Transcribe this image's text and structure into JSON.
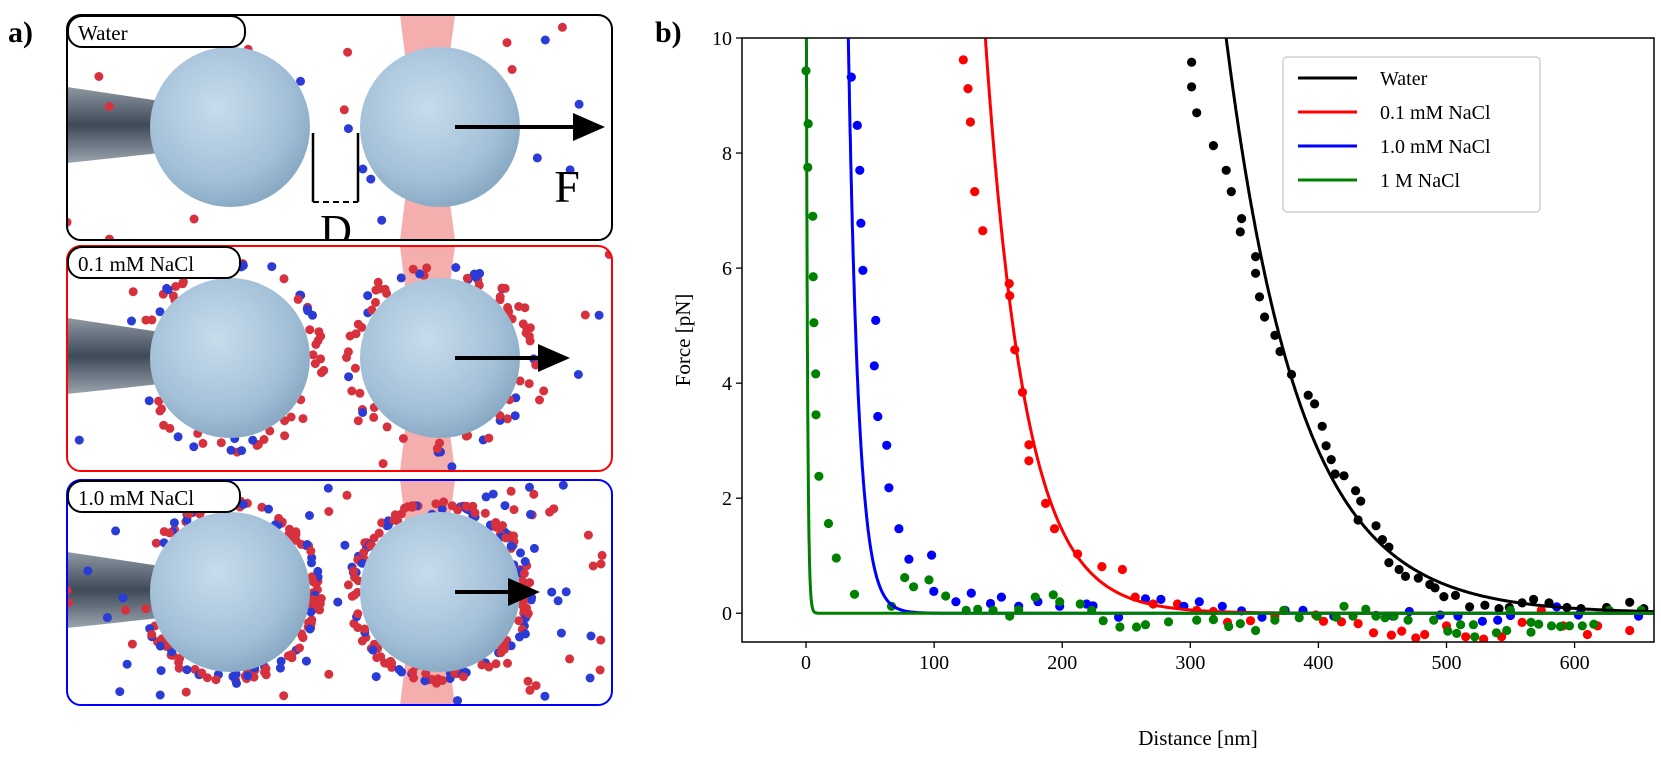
{
  "panel_a": {
    "label": "a)",
    "scenes": [
      {
        "title": "Water",
        "frame_color": "#000000"
      },
      {
        "title": "0.1 mM NaCl",
        "frame_color": "#ff0000"
      },
      {
        "title": "1.0 mM NaCl",
        "frame_color": "#0000ff"
      }
    ],
    "gap_label": "D",
    "force_label": "F",
    "colors": {
      "sphere": "#a9c6dc",
      "cation": "#d6313d",
      "anion": "#2b3bd6",
      "laser": "#f2a0a0",
      "pipette": "#5a6470"
    }
  },
  "chart_data": {
    "panel_label": "b)",
    "type": "scatter",
    "title": "",
    "xlabel": "Distance [nm]",
    "ylabel": "Force [pN]",
    "xlim": [
      -50,
      662
    ],
    "ylim": [
      -0.5,
      10
    ],
    "xticks": [
      0,
      100,
      200,
      300,
      400,
      500,
      600
    ],
    "yticks": [
      0,
      2,
      4,
      6,
      8,
      10
    ],
    "grid": false,
    "legend_position": "top-right",
    "series": [
      {
        "name": "Water",
        "color": "#000000",
        "fit": {
          "amplitude": 10,
          "x0": 328,
          "decay_length": 57
        },
        "points": [
          [
            301,
            9.58
          ],
          [
            301,
            9.15
          ],
          [
            305,
            8.7
          ],
          [
            318,
            8.13
          ],
          [
            328,
            7.7
          ],
          [
            332,
            7.33
          ],
          [
            340,
            6.86
          ],
          [
            339,
            6.63
          ],
          [
            351,
            6.2
          ],
          [
            351,
            5.91
          ],
          [
            354,
            5.5
          ],
          [
            358,
            5.15
          ],
          [
            366,
            4.83
          ],
          [
            370,
            4.55
          ],
          [
            379,
            4.15
          ],
          [
            392,
            3.79
          ],
          [
            397,
            3.64
          ],
          [
            403,
            3.25
          ],
          [
            406,
            2.91
          ],
          [
            410,
            2.67
          ],
          [
            413,
            2.42
          ],
          [
            420,
            2.39
          ],
          [
            429,
            2.13
          ],
          [
            433,
            1.95
          ],
          [
            431,
            1.62
          ],
          [
            445,
            1.52
          ],
          [
            450,
            1.28
          ],
          [
            455,
            1.15
          ],
          [
            455,
            0.88
          ],
          [
            463,
            0.76
          ],
          [
            468,
            0.64
          ],
          [
            478,
            0.61
          ],
          [
            487,
            0.5
          ],
          [
            491,
            0.44
          ],
          [
            498,
            0.29
          ],
          [
            507,
            0.31
          ],
          [
            518,
            0.11
          ],
          [
            530,
            0.14
          ],
          [
            541,
            0.08
          ],
          [
            549,
            0.1
          ],
          [
            559,
            0.18
          ],
          [
            568,
            0.24
          ],
          [
            580,
            0.18
          ],
          [
            594,
            0.1
          ],
          [
            605,
            0.08
          ],
          [
            625,
            0.1
          ],
          [
            643,
            0.19
          ],
          [
            654,
            0.08
          ]
        ]
      },
      {
        "name": "0.1 mM NaCl",
        "color": "#ff0000",
        "fit": {
          "amplitude": 10,
          "x0": 140,
          "decay_length": 31
        },
        "points": [
          [
            122.8,
            9.62
          ],
          [
            126.4,
            9.12
          ],
          [
            128.3,
            8.54
          ],
          [
            131.7,
            7.33
          ],
          [
            138,
            6.65
          ],
          [
            158.6,
            5.73
          ],
          [
            159,
            5.52
          ],
          [
            163,
            4.58
          ],
          [
            169,
            3.84
          ],
          [
            174,
            2.93
          ],
          [
            174,
            2.65
          ],
          [
            187,
            1.91
          ],
          [
            194,
            1.47
          ],
          [
            212,
            1.03
          ],
          [
            231,
            0.81
          ],
          [
            247,
            0.76
          ],
          [
            257,
            0.28
          ],
          [
            271,
            0.16
          ],
          [
            290,
            0.16
          ],
          [
            305,
            0.05
          ],
          [
            318,
            0.03
          ],
          [
            329,
            -0.16
          ],
          [
            347,
            -0.13
          ],
          [
            366,
            -0.05
          ],
          [
            398,
            -0.03
          ],
          [
            404,
            -0.14
          ],
          [
            418,
            -0.15
          ],
          [
            431,
            -0.18
          ],
          [
            443,
            -0.34
          ],
          [
            457,
            -0.38
          ],
          [
            465,
            -0.31
          ],
          [
            476,
            -0.43
          ],
          [
            483,
            -0.37
          ],
          [
            500,
            -0.22
          ],
          [
            515,
            -0.41
          ],
          [
            529,
            -0.45
          ],
          [
            543,
            -0.41
          ],
          [
            559,
            -0.16
          ],
          [
            574,
            0.05
          ],
          [
            591,
            -0.22
          ],
          [
            610,
            -0.37
          ],
          [
            618,
            -0.22
          ],
          [
            643,
            -0.3
          ]
        ]
      },
      {
        "name": "1.0 mM NaCl",
        "color": "#0000ff",
        "fit": {
          "amplitude": 10,
          "x0": 33,
          "decay_length": 8
        },
        "points": [
          [
            35.3,
            9.32
          ],
          [
            40,
            8.48
          ],
          [
            42,
            7.7
          ],
          [
            42.8,
            6.78
          ],
          [
            44.4,
            5.96
          ],
          [
            54.4,
            5.09
          ],
          [
            53.3,
            4.3
          ],
          [
            56,
            3.42
          ],
          [
            63,
            2.92
          ],
          [
            64.7,
            2.18
          ],
          [
            72.5,
            1.47
          ],
          [
            80.3,
            0.94
          ],
          [
            98,
            1.01
          ],
          [
            99.7,
            0.38
          ],
          [
            117,
            0.2
          ],
          [
            129,
            0.35
          ],
          [
            144,
            0.17
          ],
          [
            152.5,
            0.28
          ],
          [
            166,
            0.12
          ],
          [
            181,
            0.2
          ],
          [
            198,
            0.12
          ],
          [
            219,
            0.16
          ],
          [
            224,
            0.13
          ],
          [
            244,
            -0.07
          ],
          [
            265,
            0.25
          ],
          [
            277,
            0.24
          ],
          [
            295,
            0.12
          ],
          [
            307,
            0.2
          ],
          [
            325,
            0.12
          ],
          [
            340,
            0.04
          ],
          [
            356,
            -0.07
          ],
          [
            374,
            0.05
          ],
          [
            388,
            0.05
          ],
          [
            412,
            -0.05
          ],
          [
            445,
            -0.04
          ],
          [
            458,
            -0.05
          ],
          [
            471,
            0.03
          ],
          [
            495,
            -0.03
          ],
          [
            509,
            -0.05
          ],
          [
            528,
            -0.14
          ],
          [
            540,
            -0.12
          ],
          [
            550,
            -0.04
          ],
          [
            586,
            0.11
          ],
          [
            603,
            -0.03
          ],
          [
            650,
            -0.05
          ]
        ]
      },
      {
        "name": "1 M NaCl",
        "color": "#008000",
        "fit": {
          "amplitude": 10,
          "x0": 0.3,
          "decay_length": 1
        },
        "points": [
          [
            0,
            9.43
          ],
          [
            1.7,
            8.51
          ],
          [
            1.4,
            7.75
          ],
          [
            5.3,
            6.9
          ],
          [
            5.6,
            5.85
          ],
          [
            6.1,
            5.05
          ],
          [
            7.5,
            4.16
          ],
          [
            7.8,
            3.45
          ],
          [
            10,
            2.38
          ],
          [
            17.5,
            1.56
          ],
          [
            23.6,
            0.96
          ],
          [
            37.8,
            0.33
          ],
          [
            66.7,
            0.12
          ],
          [
            77,
            0.62
          ],
          [
            84,
            0.46
          ],
          [
            96,
            0.58
          ],
          [
            109,
            0.3
          ],
          [
            125,
            0.05
          ],
          [
            134,
            0.07
          ],
          [
            146,
            0.05
          ],
          [
            159,
            -0.05
          ],
          [
            166,
            0.06
          ],
          [
            179,
            0.28
          ],
          [
            193,
            0.32
          ],
          [
            198,
            0.2
          ],
          [
            214,
            0.16
          ],
          [
            223,
            0.05
          ],
          [
            232,
            -0.13
          ],
          [
            245,
            -0.24
          ],
          [
            258,
            -0.24
          ],
          [
            265,
            -0.2
          ],
          [
            283,
            -0.15
          ],
          [
            305,
            -0.12
          ],
          [
            318,
            -0.11
          ],
          [
            330,
            -0.23
          ],
          [
            339,
            -0.18
          ],
          [
            351,
            -0.3
          ],
          [
            366,
            -0.12
          ],
          [
            373,
            0.05
          ],
          [
            385,
            -0.08
          ],
          [
            399,
            -0.05
          ],
          [
            414,
            -0.07
          ],
          [
            420,
            0.12
          ],
          [
            427,
            -0.05
          ],
          [
            437,
            0.07
          ],
          [
            445,
            -0.05
          ],
          [
            452,
            -0.08
          ],
          [
            459,
            -0.05
          ],
          [
            470,
            -0.12
          ],
          [
            490,
            -0.12
          ],
          [
            501,
            -0.31
          ],
          [
            508,
            -0.35
          ],
          [
            511,
            -0.2
          ],
          [
            521,
            -0.2
          ],
          [
            522,
            -0.41
          ],
          [
            539,
            -0.34
          ],
          [
            547,
            -0.3
          ],
          [
            550,
            0.05
          ],
          [
            566,
            -0.16
          ],
          [
            566,
            -0.33
          ],
          [
            572,
            -0.19
          ],
          [
            582,
            -0.22
          ],
          [
            589,
            -0.23
          ],
          [
            596,
            -0.22
          ],
          [
            606,
            -0.22
          ],
          [
            615,
            -0.19
          ],
          [
            627,
            0.05
          ],
          [
            652,
            0.05
          ]
        ]
      }
    ]
  }
}
